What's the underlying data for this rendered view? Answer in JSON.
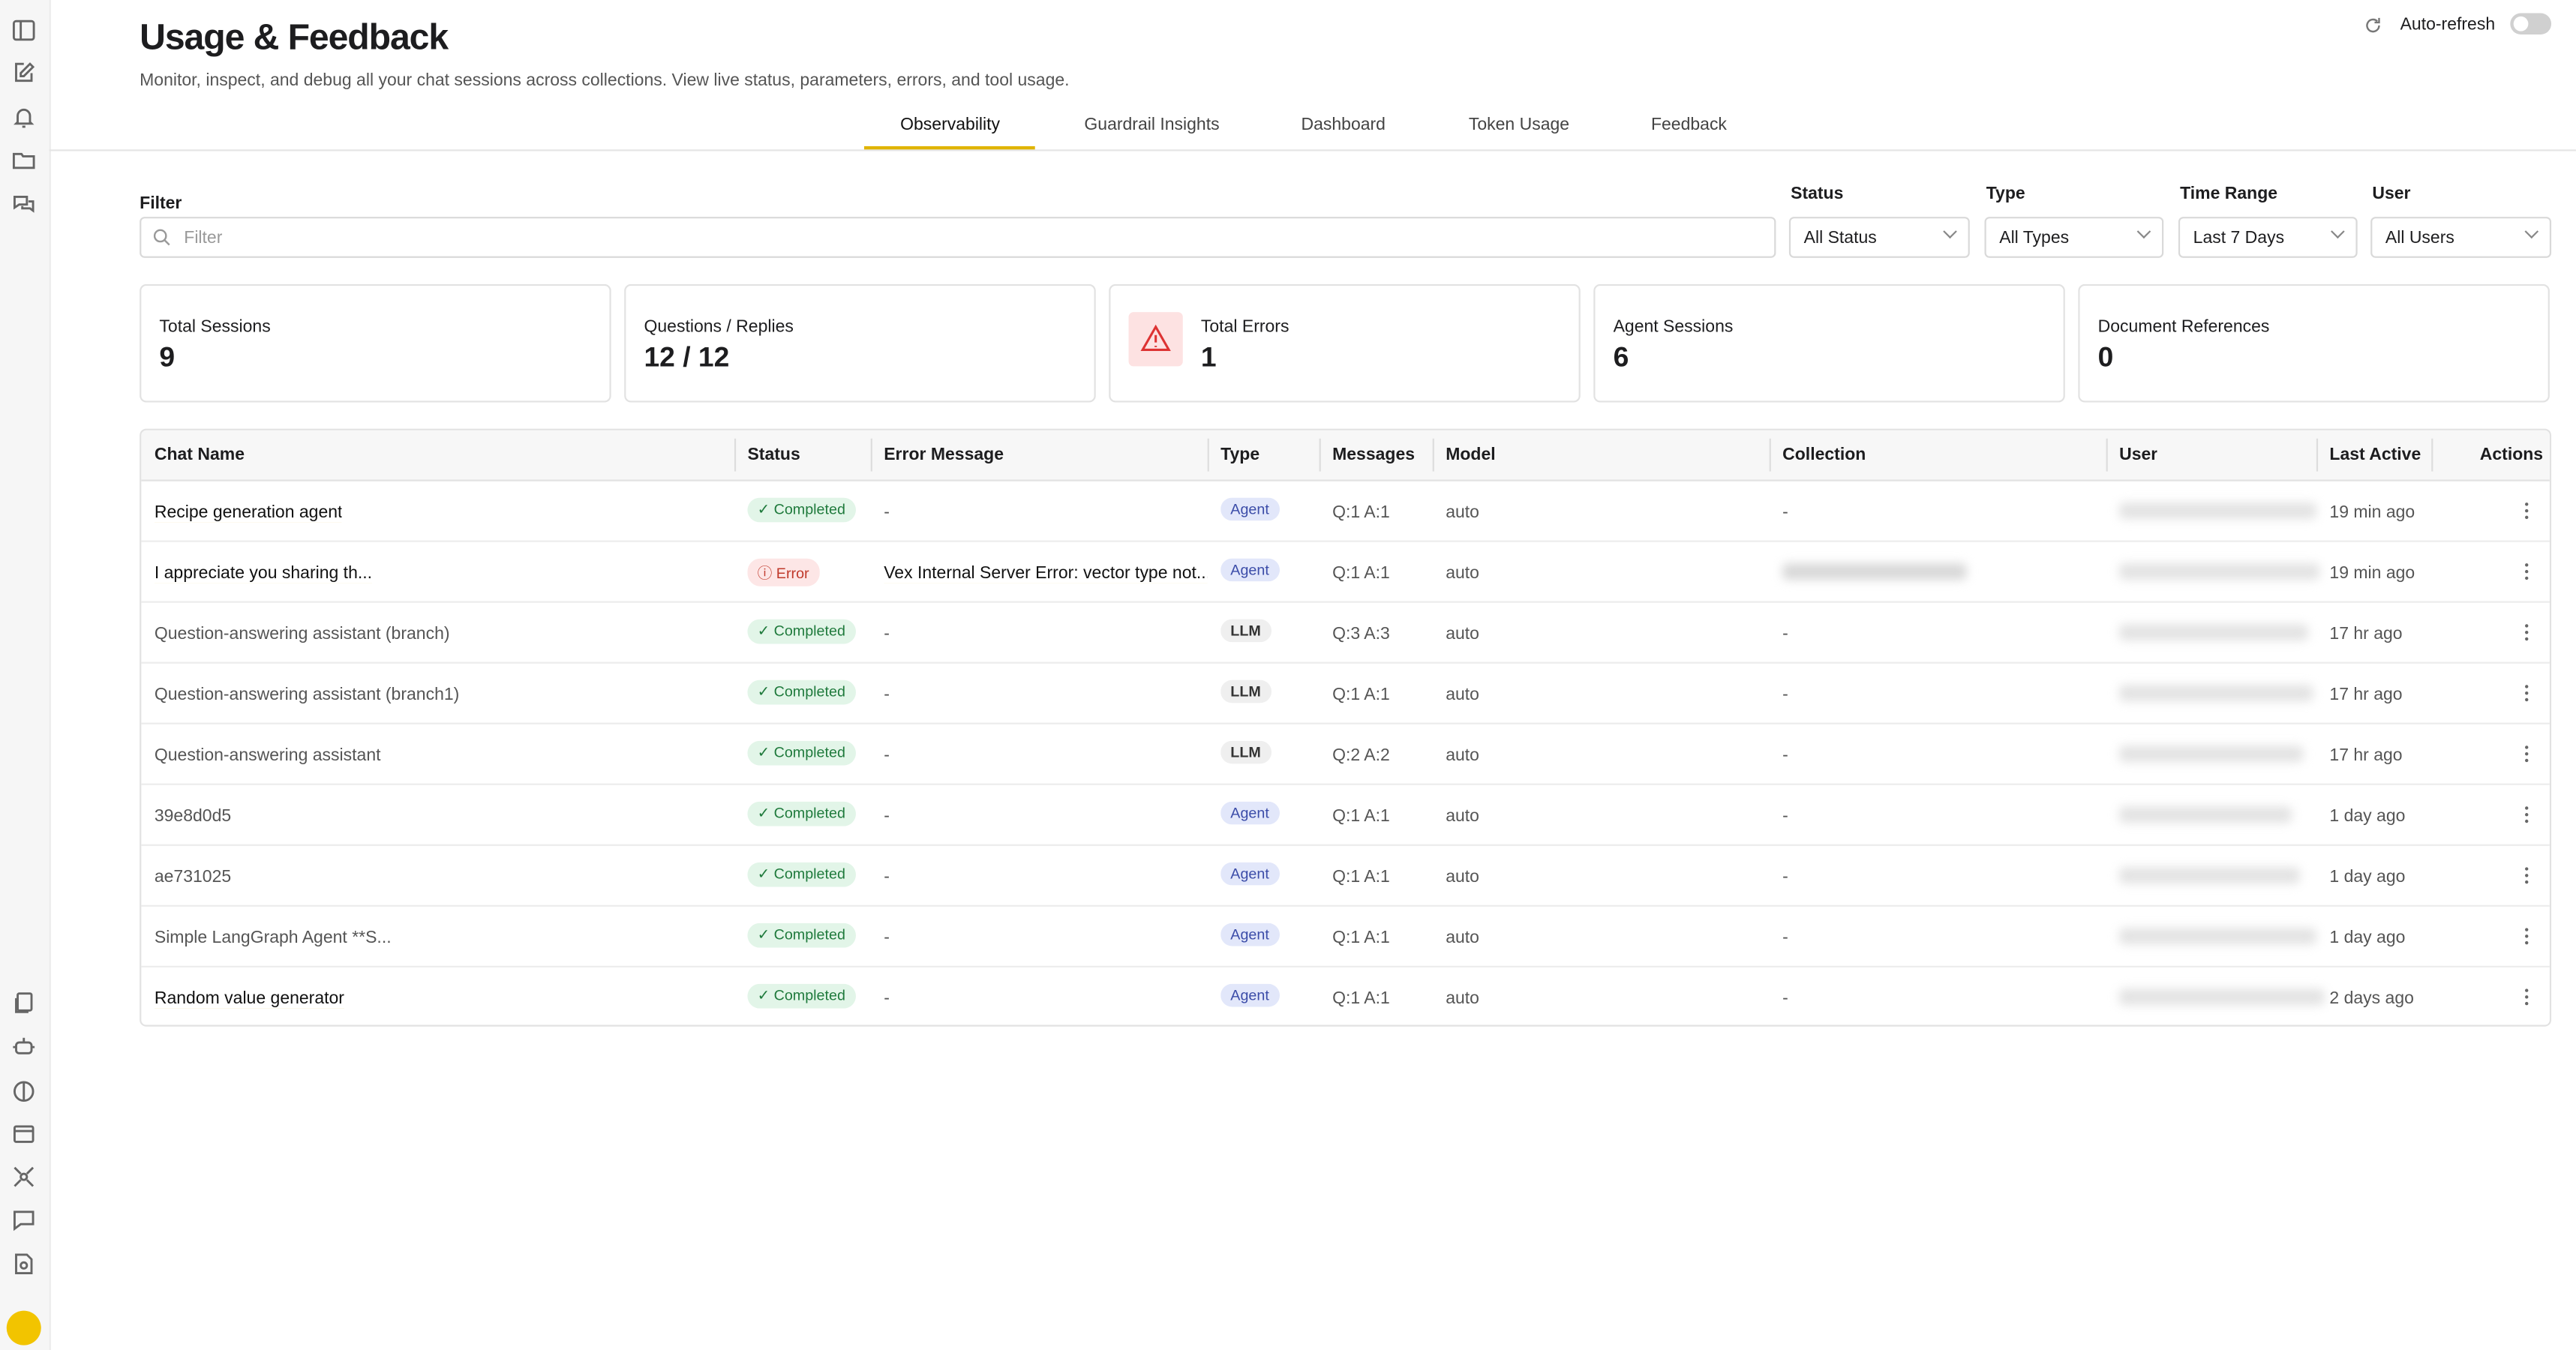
{
  "header": {
    "title": "Usage & Feedback",
    "subtitle": "Monitor, inspect, and debug all your chat sessions across collections. View live status, parameters, errors, and tool usage.",
    "auto_refresh": "Auto-refresh"
  },
  "tabs": {
    "items": [
      "Observability",
      "Guardrail Insights",
      "Dashboard",
      "Token Usage",
      "Feedback"
    ],
    "active": 0
  },
  "filters": {
    "label": "Filter",
    "placeholder": "Filter",
    "selects": [
      {
        "label": "Status",
        "value": "All Status"
      },
      {
        "label": "Type",
        "value": "All Types"
      },
      {
        "label": "Time Range",
        "value": "Last 7 Days"
      },
      {
        "label": "User",
        "value": "All Users"
      }
    ]
  },
  "stats": [
    {
      "label": "Total Sessions",
      "value": 9
    },
    {
      "label": "Questions / Replies",
      "value": "12 / 12"
    },
    {
      "label": "Total Errors",
      "value": 1,
      "alert": true
    },
    {
      "label": "Agent Sessions",
      "value": 6
    },
    {
      "label": "Document References",
      "value": 0
    }
  ],
  "table": {
    "columns": [
      "Chat Name",
      "Status",
      "Error Message",
      "Type",
      "Messages",
      "Model",
      "Collection",
      "User",
      "Last Active",
      "Actions"
    ],
    "rows": [
      {
        "chat_name": "Recipe generation agent",
        "underlined": true,
        "status": "Completed",
        "error_message": "-",
        "type": "Agent",
        "messages": "Q:1 A:1",
        "model": "auto",
        "collection": "-",
        "last_active": "19 min ago"
      },
      {
        "chat_name": "I appreciate you sharing th...",
        "underlined": true,
        "status": "Error",
        "error_message": "Vex Internal Server Error: vector type not...",
        "type": "Agent",
        "messages": "Q:1 A:1",
        "model": "auto",
        "collection": null,
        "last_active": "19 min ago"
      },
      {
        "chat_name": "Question-answering assistant (branch)",
        "underlined": false,
        "status": "Completed",
        "error_message": "-",
        "type": "LLM",
        "messages": "Q:3 A:3",
        "model": "auto",
        "collection": "-",
        "last_active": "17 hr ago"
      },
      {
        "chat_name": "Question-answering assistant (branch1)",
        "underlined": false,
        "status": "Completed",
        "error_message": "-",
        "type": "LLM",
        "messages": "Q:1 A:1",
        "model": "auto",
        "collection": "-",
        "last_active": "17 hr ago"
      },
      {
        "chat_name": "Question-answering assistant",
        "underlined": false,
        "status": "Completed",
        "error_message": "-",
        "type": "LLM",
        "messages": "Q:2 A:2",
        "model": "auto",
        "collection": "-",
        "last_active": "17 hr ago"
      },
      {
        "chat_name": "39e8d0d5",
        "underlined": false,
        "status": "Completed",
        "error_message": "-",
        "type": "Agent",
        "messages": "Q:1 A:1",
        "model": "auto",
        "collection": "-",
        "last_active": "1 day ago"
      },
      {
        "chat_name": "ae731025",
        "underlined": false,
        "status": "Completed",
        "error_message": "-",
        "type": "Agent",
        "messages": "Q:1 A:1",
        "model": "auto",
        "collection": "-",
        "last_active": "1 day ago"
      },
      {
        "chat_name": "Simple LangGraph Agent **S...",
        "underlined": false,
        "status": "Completed",
        "error_message": "-",
        "type": "Agent",
        "messages": "Q:1 A:1",
        "model": "auto",
        "collection": "-",
        "last_active": "1 day ago"
      },
      {
        "chat_name": "Random value generator",
        "underlined": true,
        "status": "Completed",
        "error_message": "-",
        "type": "Agent",
        "messages": "Q:1 A:1",
        "model": "auto",
        "collection": "-",
        "last_active": "2 days ago"
      }
    ]
  }
}
